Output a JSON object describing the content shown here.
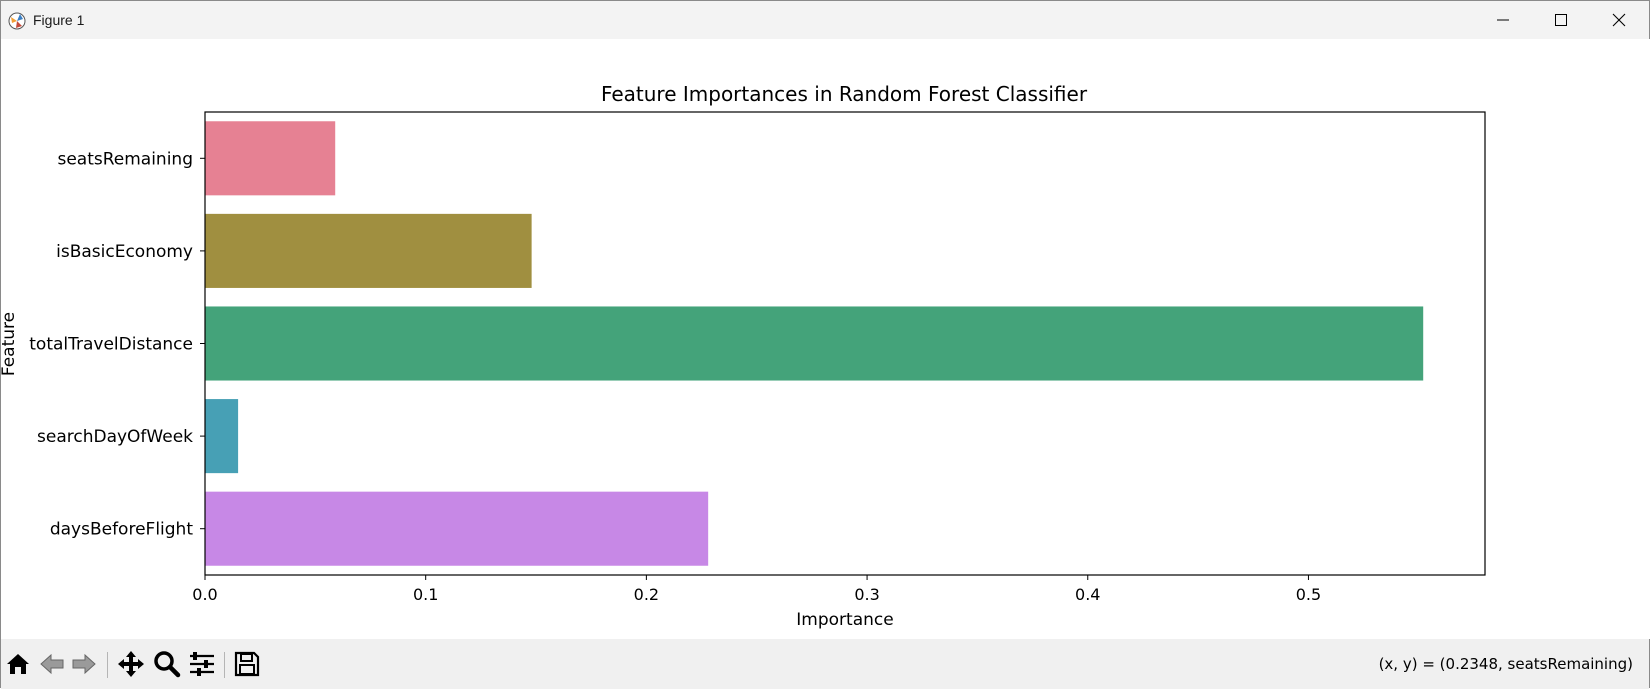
{
  "window": {
    "title": "Figure 1"
  },
  "toolbar": {
    "buttons": [
      "home-icon",
      "back-icon",
      "forward-icon",
      "pan-icon",
      "zoom-icon",
      "configure-subplots-icon",
      "save-icon"
    ],
    "coords": "(x, y) = (0.2348, seatsRemaining)"
  },
  "chart_data": {
    "type": "bar",
    "orientation": "horizontal",
    "title": "Feature Importances in Random Forest Classifier",
    "xlabel": "Importance",
    "ylabel": "Feature",
    "categories": [
      "seatsRemaining",
      "isBasicEconomy",
      "totalTravelDistance",
      "searchDayOfWeek",
      "daysBeforeFlight"
    ],
    "values": [
      0.059,
      0.148,
      0.552,
      0.015,
      0.228
    ],
    "colors": [
      "#e68193",
      "#a08f40",
      "#44a37a",
      "#47a0b5",
      "#c788e6"
    ],
    "xlim": [
      0,
      0.58
    ],
    "xticks": [
      0.0,
      0.1,
      0.2,
      0.3,
      0.4,
      0.5
    ],
    "xtick_labels": [
      "0.0",
      "0.1",
      "0.2",
      "0.3",
      "0.4",
      "0.5"
    ],
    "grid": false,
    "legend": false
  }
}
